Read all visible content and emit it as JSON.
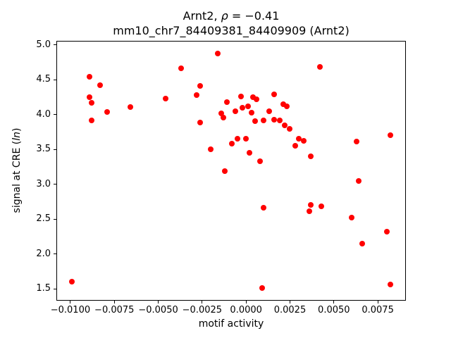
{
  "chart_data": {
    "type": "scatter",
    "title": "Arnt2, ρ = −0.41",
    "title_parts": {
      "pre": "Arnt2, ",
      "rho": "ρ",
      "post": " = −0.41"
    },
    "subtitle": "mm10_chr7_84409381_84409909 (Arnt2)",
    "xlabel": "motif activity",
    "ylabel": "signal at CRE (ln)",
    "ylabel_parts": {
      "pre": "signal at CRE (",
      "ital": "ln",
      "post": ")"
    },
    "marker_color": "#ff0000",
    "grid": false,
    "legend": "none",
    "xlim": [
      -0.0108,
      0.0091
    ],
    "ylim": [
      1.33,
      5.06
    ],
    "xtick_values": [
      -0.01,
      -0.0075,
      -0.005,
      -0.0025,
      0.0,
      0.0025,
      0.005,
      0.0075
    ],
    "xtick_labels": [
      "−0.0100",
      "−0.0075",
      "−0.0050",
      "−0.0025",
      "0.0000",
      "0.0025",
      "0.0050",
      "0.0075"
    ],
    "ytick_values": [
      1.5,
      2.0,
      2.5,
      3.0,
      3.5,
      4.0,
      4.5,
      5.0
    ],
    "ytick_labels": [
      "1.5",
      "2.0",
      "2.5",
      "3.0",
      "3.5",
      "4.0",
      "4.5",
      "5.0"
    ],
    "points": [
      [
        -0.0099,
        1.6
      ],
      [
        -0.0089,
        4.54
      ],
      [
        -0.0089,
        4.25
      ],
      [
        -0.0088,
        4.17
      ],
      [
        -0.0088,
        3.92
      ],
      [
        -0.0083,
        4.42
      ],
      [
        -0.0079,
        4.04
      ],
      [
        -0.0066,
        4.11
      ],
      [
        -0.0046,
        4.23
      ],
      [
        -0.0037,
        4.67
      ],
      [
        -0.0028,
        4.28
      ],
      [
        -0.0026,
        4.41
      ],
      [
        -0.0026,
        3.89
      ],
      [
        -0.002,
        3.5
      ],
      [
        -0.0016,
        4.88
      ],
      [
        -0.0014,
        4.02
      ],
      [
        -0.0013,
        3.96
      ],
      [
        -0.0012,
        3.19
      ],
      [
        -0.0011,
        4.18
      ],
      [
        -0.0008,
        3.58
      ],
      [
        -0.0006,
        4.05
      ],
      [
        -0.0005,
        3.65
      ],
      [
        -0.0003,
        4.26
      ],
      [
        -0.0002,
        4.1
      ],
      [
        0.0,
        3.65
      ],
      [
        0.0001,
        4.12
      ],
      [
        0.0002,
        3.45
      ],
      [
        0.0003,
        4.03
      ],
      [
        0.0004,
        4.25
      ],
      [
        0.0005,
        3.91
      ],
      [
        0.0006,
        4.22
      ],
      [
        0.0008,
        3.33
      ],
      [
        0.0009,
        1.51
      ],
      [
        0.001,
        2.66
      ],
      [
        0.001,
        3.92
      ],
      [
        0.0013,
        4.05
      ],
      [
        0.0016,
        4.29
      ],
      [
        0.0016,
        3.93
      ],
      [
        0.0019,
        3.92
      ],
      [
        0.0021,
        4.15
      ],
      [
        0.0022,
        3.85
      ],
      [
        0.0023,
        4.12
      ],
      [
        0.0025,
        3.8
      ],
      [
        0.0028,
        3.55
      ],
      [
        0.003,
        3.65
      ],
      [
        0.0033,
        3.62
      ],
      [
        0.0037,
        3.4
      ],
      [
        0.0037,
        2.7
      ],
      [
        0.0036,
        2.61
      ],
      [
        0.0042,
        4.69
      ],
      [
        0.0043,
        2.68
      ],
      [
        0.006,
        2.52
      ],
      [
        0.0063,
        3.61
      ],
      [
        0.0064,
        3.05
      ],
      [
        0.0066,
        2.15
      ],
      [
        0.008,
        2.32
      ],
      [
        0.0082,
        3.71
      ],
      [
        0.0082,
        1.56
      ]
    ]
  }
}
